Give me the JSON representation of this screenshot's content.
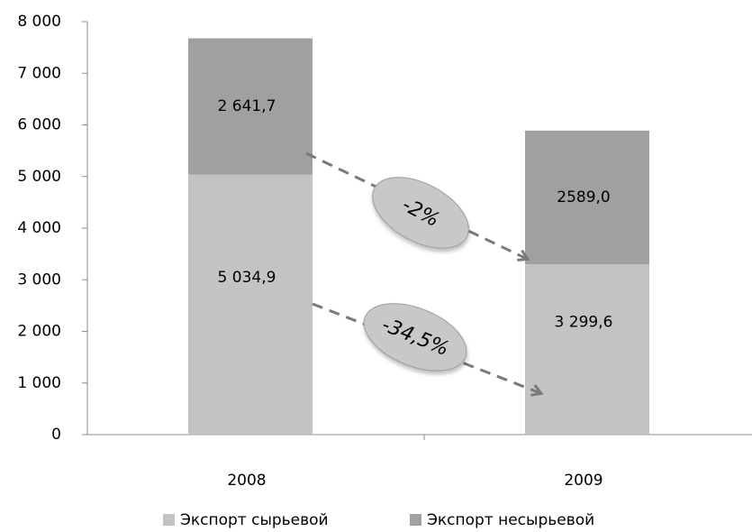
{
  "chart_data": {
    "type": "bar",
    "stacked": true,
    "categories": [
      "2008",
      "2009"
    ],
    "series": [
      {
        "name": "Экспорт сырьевой",
        "values": [
          5034.9,
          3299.6
        ],
        "labels": [
          "5 034,9",
          "3 299,6"
        ],
        "color": "#c3c3c3"
      },
      {
        "name": "Экспорт несырьевой",
        "values": [
          2641.7,
          2589.0
        ],
        "labels": [
          "2 641,7",
          "2589,0"
        ],
        "color": "#a0a0a0"
      }
    ],
    "ylim": [
      0,
      8000
    ],
    "yticks": [
      0,
      1000,
      2000,
      3000,
      4000,
      5000,
      6000,
      7000,
      8000
    ],
    "ytick_labels": [
      "0",
      "1 000",
      "2 000",
      "3 000",
      "4 000",
      "5 000",
      "6 000",
      "7 000",
      "8 000"
    ],
    "annotations": [
      {
        "text": "-2%",
        "series": "Экспорт несырьевой"
      },
      {
        "text": "-34,5%",
        "series": "Экспорт сырьевой"
      }
    ],
    "legend_position": "bottom",
    "grid": false
  }
}
